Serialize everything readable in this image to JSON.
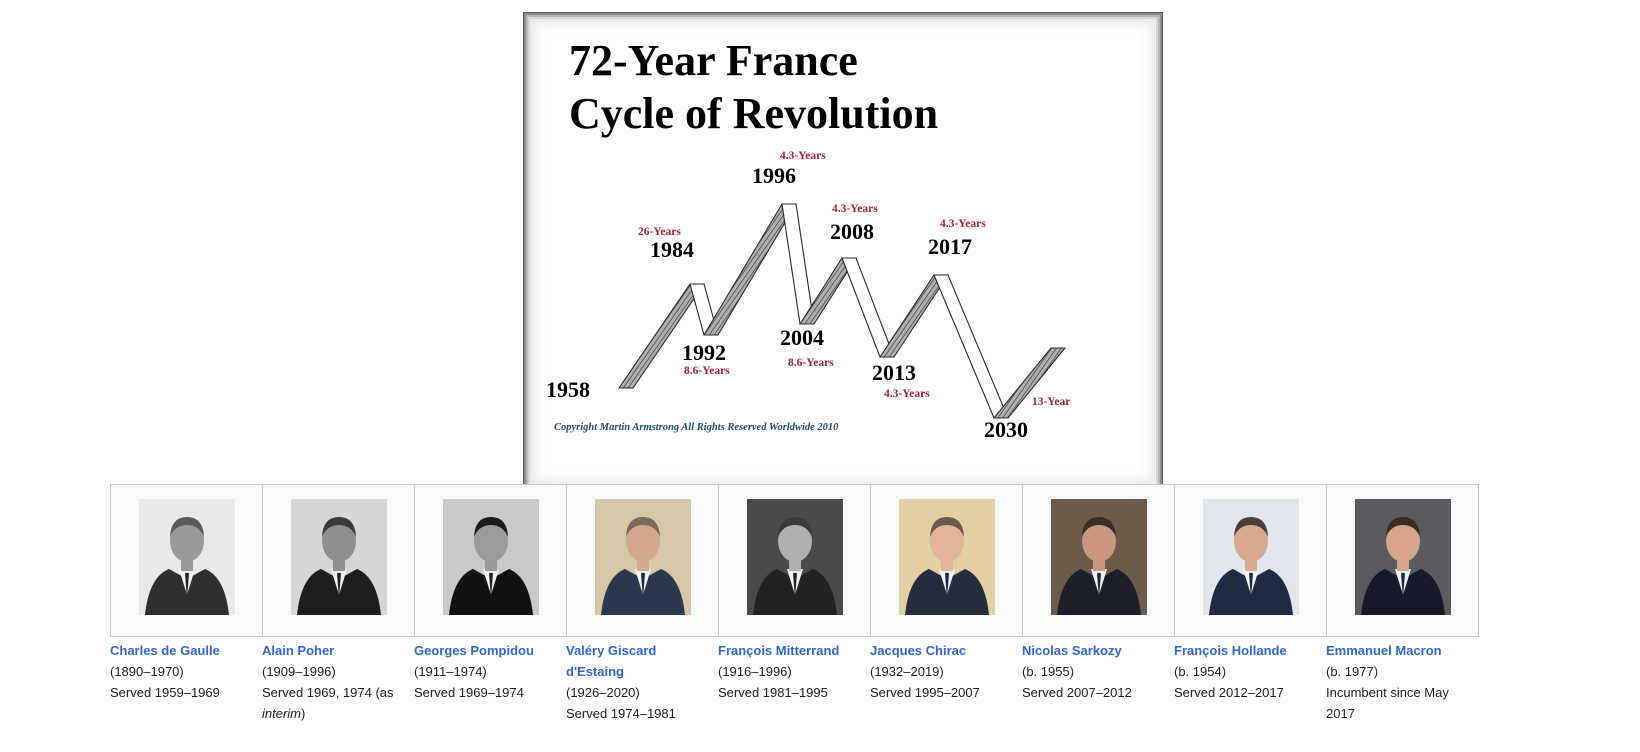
{
  "figure": {
    "title_line1": "72-Year France",
    "title_line2": "Cycle of Revolution",
    "copyright": "Copyright Martin Armstrong All Rights Reserved Worldwide 2010",
    "colors": {
      "year_text": "#000000",
      "interval_text": "#9b2335",
      "copyright_text": "#1b4f6b",
      "band_fill": "#8a8a8a",
      "band_stroke": "#2a2a2a"
    },
    "turning_points": [
      {
        "year": "1958",
        "kind": "low"
      },
      {
        "year": "1984",
        "kind": "high"
      },
      {
        "year": "1992",
        "kind": "low"
      },
      {
        "year": "1996",
        "kind": "high"
      },
      {
        "year": "2004",
        "kind": "low"
      },
      {
        "year": "2008",
        "kind": "high"
      },
      {
        "year": "2013",
        "kind": "low"
      },
      {
        "year": "2017",
        "kind": "high"
      },
      {
        "year": "2030",
        "kind": "low"
      }
    ],
    "interval_labels": [
      "26-Years",
      "8.6-Years",
      "4.3-Years",
      "8.6-Years",
      "4.3-Years",
      "4.3-Years",
      "4.3-Years",
      "13-Year"
    ]
  },
  "presidents": [
    {
      "name": "Charles de Gaulle",
      "life": "(1890–1970)",
      "served": "Served 1959–1969",
      "extra": "",
      "icon": "portrait-de-gaulle-icon"
    },
    {
      "name": "Alain Poher",
      "life": "(1909–1996)",
      "served": "Served 1969, 1974 (as",
      "extra": "interim",
      "extra_suffix": ")",
      "icon": "portrait-poher-icon"
    },
    {
      "name": "Georges Pompidou",
      "life": "(1911–1974)",
      "served": "Served 1969–1974",
      "extra": "",
      "icon": "portrait-pompidou-icon"
    },
    {
      "name_line1": "Valéry Giscard",
      "name_line2": "d'Estaing",
      "life": "(1926–2020)",
      "served": "Served 1974–1981",
      "extra": "",
      "icon": "portrait-giscard-icon"
    },
    {
      "name": "François Mitterrand",
      "life": "(1916–1996)",
      "served": "Served 1981–1995",
      "extra": "",
      "icon": "portrait-mitterrand-icon"
    },
    {
      "name": "Jacques Chirac",
      "life": "(1932–2019)",
      "served": "Served 1995–2007",
      "extra": "",
      "icon": "portrait-chirac-icon"
    },
    {
      "name": "Nicolas Sarkozy",
      "life": "(b. 1955)",
      "served": "Served 2007–2012",
      "extra": "",
      "icon": "portrait-sarkozy-icon"
    },
    {
      "name": "François Hollande",
      "life": "(b. 1954)",
      "served": "Served 2012–2017",
      "extra": "",
      "icon": "portrait-hollande-icon"
    },
    {
      "name": "Emmanuel Macron",
      "life": "(b. 1977)",
      "served": "Incumbent since May",
      "extra": "2017",
      "icon": "portrait-macron-icon"
    }
  ]
}
